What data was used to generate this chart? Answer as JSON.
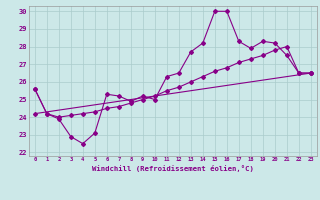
{
  "xlabel": "Windchill (Refroidissement éolien,°C)",
  "xlim": [
    0,
    23
  ],
  "ylim": [
    22,
    30
  ],
  "yticks": [
    22,
    23,
    24,
    25,
    26,
    27,
    28,
    29,
    30
  ],
  "xticks": [
    0,
    1,
    2,
    3,
    4,
    5,
    6,
    7,
    8,
    9,
    10,
    11,
    12,
    13,
    14,
    15,
    16,
    17,
    18,
    19,
    20,
    21,
    22,
    23
  ],
  "bg_color": "#cce8e8",
  "line_color": "#880088",
  "grid_color": "#aacccc",
  "line1_x": [
    0,
    1,
    2,
    3,
    4,
    5,
    6,
    7,
    8,
    9,
    10,
    11,
    12,
    13,
    14,
    15,
    16,
    17,
    18,
    19,
    20,
    21,
    22,
    23
  ],
  "line1_y": [
    25.6,
    24.2,
    23.9,
    22.9,
    22.5,
    23.1,
    25.3,
    25.2,
    24.9,
    25.2,
    25.0,
    26.3,
    26.5,
    27.7,
    28.2,
    30.0,
    30.0,
    28.3,
    27.9,
    28.3,
    28.2,
    27.5,
    26.5,
    26.5
  ],
  "line2_x": [
    0,
    1,
    2,
    3,
    4,
    5,
    6,
    7,
    8,
    9,
    10,
    11,
    12,
    13,
    14,
    15,
    16,
    17,
    18,
    19,
    20,
    21,
    22,
    23
  ],
  "line2_y": [
    25.6,
    24.2,
    24.0,
    24.1,
    24.2,
    24.3,
    24.5,
    24.6,
    24.8,
    25.0,
    25.2,
    25.5,
    25.7,
    26.0,
    26.3,
    26.6,
    26.8,
    27.1,
    27.3,
    27.5,
    27.8,
    28.0,
    26.5,
    26.5
  ],
  "line3_x": [
    0,
    23
  ],
  "line3_y": [
    24.2,
    26.5
  ]
}
